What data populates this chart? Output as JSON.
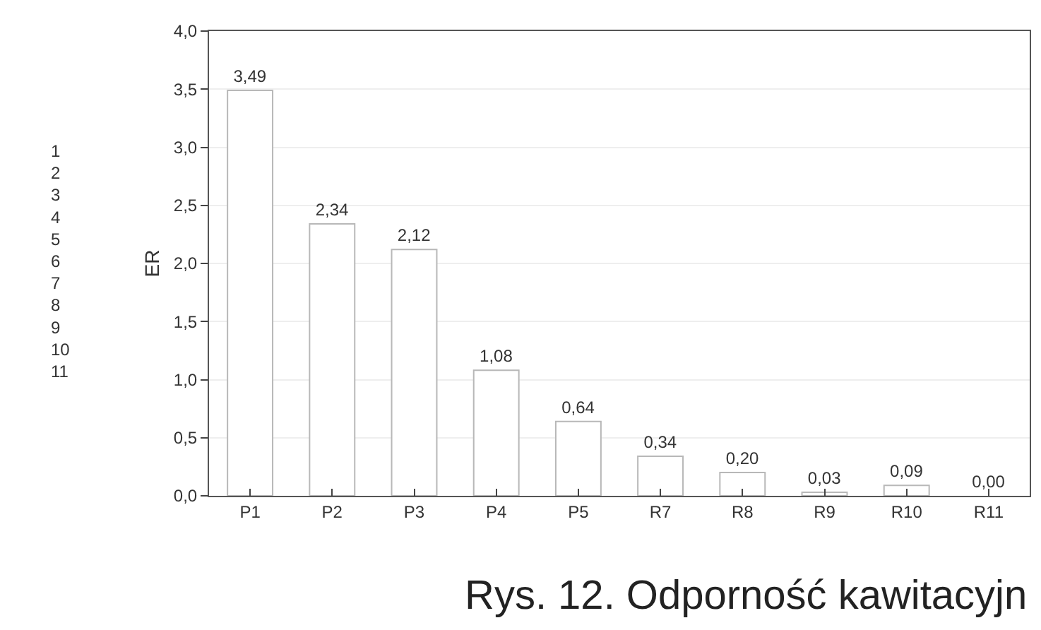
{
  "chart_data": {
    "type": "bar",
    "ylabel": "ER",
    "categories": [
      "P1",
      "P2",
      "P3",
      "P4",
      "P5",
      "R7",
      "R8",
      "R9",
      "R10",
      "R11"
    ],
    "values": [
      3.49,
      2.34,
      2.12,
      1.08,
      0.64,
      0.34,
      0.2,
      0.03,
      0.09,
      0.0
    ],
    "value_labels": [
      "3,49",
      "2,34",
      "2,12",
      "1,08",
      "0,64",
      "0,34",
      "0,20",
      "0,03",
      "0,09",
      "0,00"
    ],
    "color": "#ffffff",
    "ylim": [
      0,
      4
    ],
    "yticks": [
      {
        "value": 0,
        "label": "0,0"
      },
      {
        "value": 0.5,
        "label": "0,5"
      },
      {
        "value": 1,
        "label": "1,0"
      },
      {
        "value": 1.5,
        "label": "1,5"
      },
      {
        "value": 2,
        "label": "2,0"
      },
      {
        "value": 2.5,
        "label": "2,5"
      },
      {
        "value": 3,
        "label": "3,0"
      },
      {
        "value": 3.5,
        "label": "3,5"
      },
      {
        "value": 4,
        "label": "4,0"
      }
    ],
    "grid": "y",
    "annotations": [
      "1\n2\n3\n4\n5\n6\n7\n8\n9\n10\n11",
      "Rys. 12. Odporność kawitacyjn"
    ]
  }
}
